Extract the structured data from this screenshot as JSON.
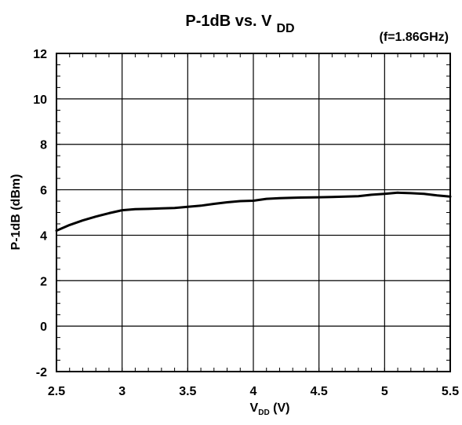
{
  "chart_data": {
    "type": "line",
    "title": {
      "main": "P-1dB vs. V",
      "sub": "DD"
    },
    "annotation": "(f=1.86GHz)",
    "xlabel": {
      "main": "V",
      "sub": "DD",
      "units": " (V)"
    },
    "ylabel": "P-1dB (dBm)",
    "xlim": [
      2.5,
      5.5
    ],
    "ylim": [
      -2,
      12
    ],
    "xticks": [
      "2.5",
      "3",
      "3.5",
      "4",
      "4.5",
      "5",
      "5.5"
    ],
    "yticks": [
      "-2",
      "0",
      "2",
      "4",
      "6",
      "8",
      "10",
      "12"
    ],
    "grid": true,
    "series": [
      {
        "color": "#000000",
        "x": [
          2.5,
          2.6,
          2.7,
          2.8,
          2.9,
          3.0,
          3.1,
          3.2,
          3.3,
          3.4,
          3.5,
          3.6,
          3.7,
          3.8,
          3.9,
          4.0,
          4.1,
          4.2,
          4.3,
          4.4,
          4.5,
          4.6,
          4.7,
          4.8,
          4.9,
          5.0,
          5.1,
          5.2,
          5.3,
          5.4,
          5.5
        ],
        "y": [
          4.2,
          4.45,
          4.65,
          4.82,
          4.97,
          5.1,
          5.15,
          5.16,
          5.18,
          5.2,
          5.25,
          5.3,
          5.38,
          5.45,
          5.5,
          5.52,
          5.6,
          5.63,
          5.65,
          5.66,
          5.67,
          5.68,
          5.7,
          5.72,
          5.78,
          5.82,
          5.87,
          5.85,
          5.82,
          5.75,
          5.7
        ]
      }
    ]
  }
}
